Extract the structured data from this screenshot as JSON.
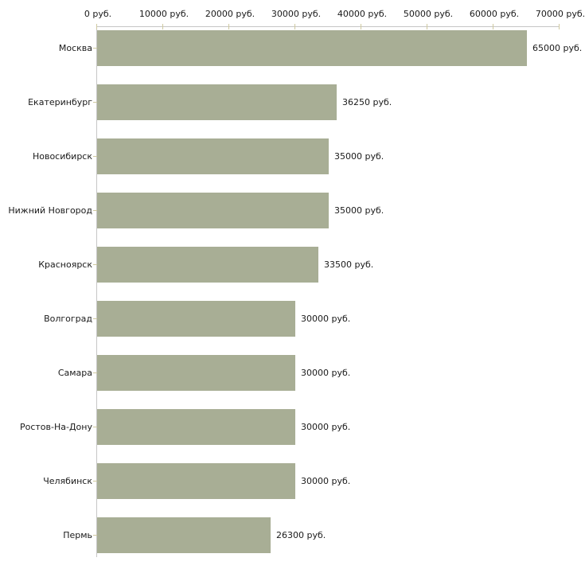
{
  "chart_data": {
    "type": "bar",
    "orientation": "horizontal",
    "title": "",
    "xlabel": "",
    "ylabel": "",
    "xlim": [
      0,
      70000
    ],
    "x_tick_interval": 10000,
    "x_tick_labels": [
      "0 руб.",
      "10000 руб.",
      "20000 руб.",
      "30000 руб.",
      "40000 руб.",
      "50000 руб.",
      "60000 руб.",
      "70000 руб."
    ],
    "grid": false,
    "legend": false,
    "categories": [
      "Москва",
      "Екатеринбург",
      "Новосибирск",
      "Нижний Новгород",
      "Красноярск",
      "Волгоград",
      "Самара",
      "Ростов-На-Дону",
      "Челябинск",
      "Пермь"
    ],
    "values": [
      65000,
      36250,
      35000,
      35000,
      33500,
      30000,
      30000,
      30000,
      30000,
      26300
    ],
    "value_labels": [
      "65000 руб.",
      "36250 руб.",
      "35000 руб.",
      "35000 руб.",
      "33500 руб.",
      "30000 руб.",
      "30000 руб.",
      "30000 руб.",
      "30000 руб.",
      "26300 руб."
    ],
    "colors": {
      "bar": "#a8ae95",
      "axis": "#c6c6c6",
      "tick": "#cfc9a0",
      "text": "#1a1a1a",
      "background": "#ffffff"
    }
  }
}
